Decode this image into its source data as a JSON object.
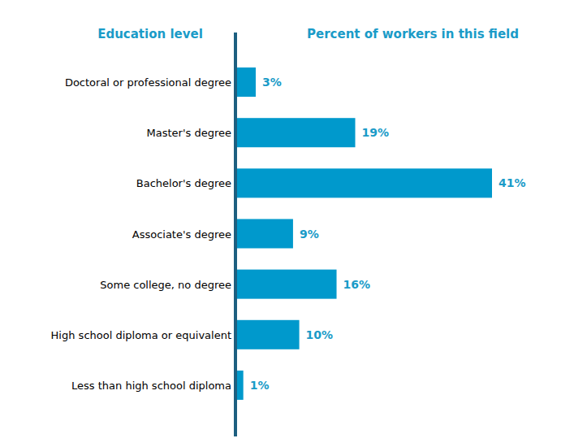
{
  "chart_data": {
    "type": "bar",
    "orientation": "horizontal",
    "ylabel": "Education level",
    "xlabel": "Percent of workers in this field",
    "categories": [
      "Doctoral or professional degree",
      "Master's degree",
      "Bachelor's degree",
      "Associate's degree",
      "Some college, no degree",
      "High school diploma or equivalent",
      "Less than high school diploma"
    ],
    "values": [
      3,
      19,
      41,
      9,
      16,
      10,
      1
    ],
    "value_labels": [
      "3%",
      "19%",
      "41%",
      "9%",
      "16%",
      "10%",
      "1%"
    ],
    "color": "#0099cc",
    "xlim": [
      0,
      41
    ],
    "data_labels": true,
    "tick_labels": "y"
  }
}
